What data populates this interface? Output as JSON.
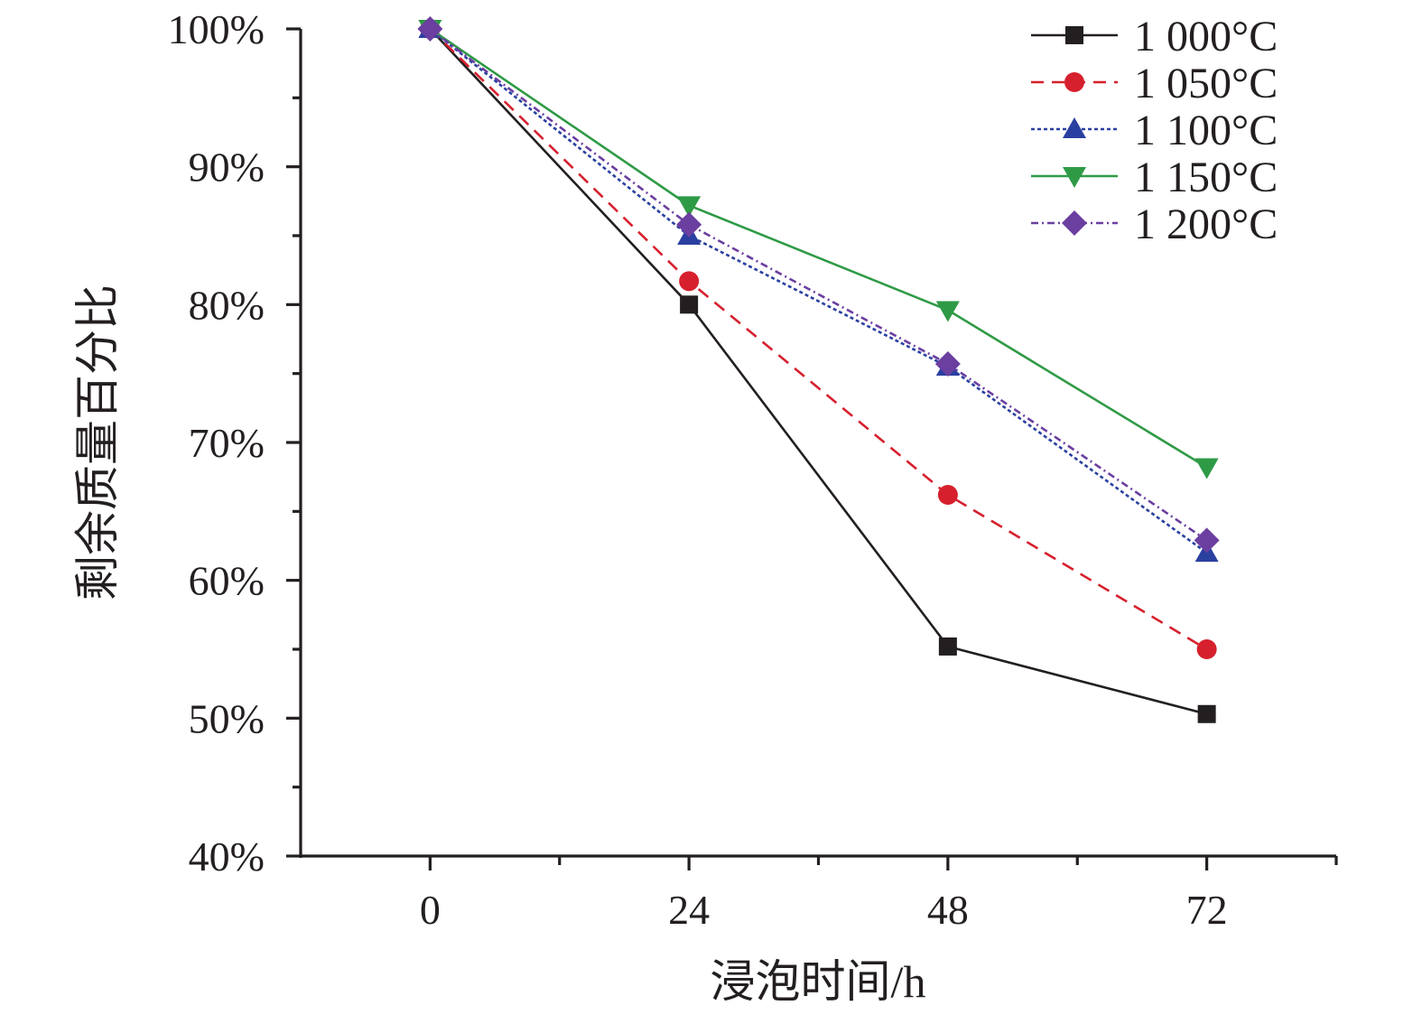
{
  "chart_data": {
    "type": "line",
    "title": "",
    "xlabel": "浸泡时间/h",
    "ylabel": "剩余质量百分比",
    "x": [
      0,
      24,
      48,
      72
    ],
    "x_tick_labels": [
      "0",
      "24",
      "48",
      "72"
    ],
    "xlim": [
      -12,
      84
    ],
    "ylim": [
      40,
      100
    ],
    "y_ticks": [
      40,
      50,
      60,
      70,
      80,
      90,
      100
    ],
    "y_tick_labels": [
      "40%",
      "50%",
      "60%",
      "70%",
      "80%",
      "90%",
      "100%"
    ],
    "grid": false,
    "legend_position": "top-right",
    "series": [
      {
        "name": "1 000°C",
        "values": [
          100,
          80.0,
          55.2,
          50.3
        ],
        "color": "#231f20",
        "marker": "square",
        "line": "solid"
      },
      {
        "name": "1 050°C",
        "values": [
          100,
          81.7,
          66.2,
          55.0
        ],
        "color": "#d6202d",
        "marker": "circle",
        "line": "dashed"
      },
      {
        "name": "1 100°C",
        "values": [
          100,
          85.0,
          75.5,
          62.0
        ],
        "color": "#2a40a0",
        "marker": "triangle-up",
        "line": "dotted"
      },
      {
        "name": "1 150°C",
        "values": [
          100,
          87.2,
          79.6,
          68.2
        ],
        "color": "#2f9a46",
        "marker": "triangle-down",
        "line": "solid"
      },
      {
        "name": "1 200°C",
        "values": [
          100,
          85.8,
          75.7,
          62.9
        ],
        "color": "#6b3fa0",
        "marker": "diamond",
        "line": "dashdot"
      }
    ]
  }
}
